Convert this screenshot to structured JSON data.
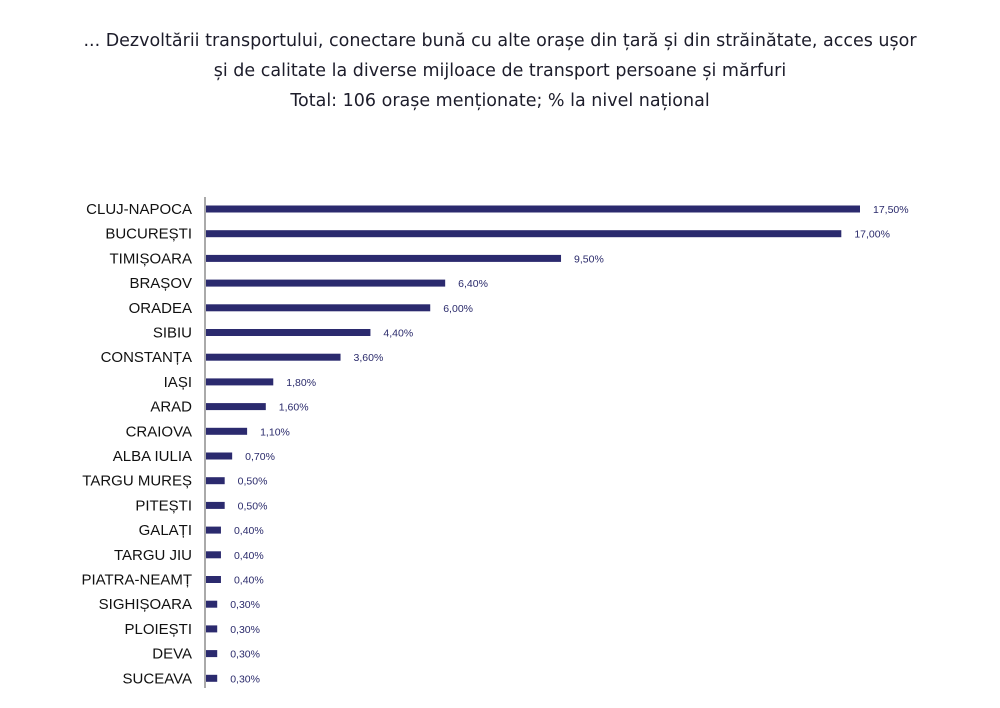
{
  "title_lines": [
    "... Dezvoltării transportului, conectare bună cu alte orașe din țară și din străinătate, acces ușor",
    "și de calitate la diverse mijloace de transport persoane și mărfuri",
    "Total: 106 orașe menționate; % la nivel național"
  ],
  "chart_data": {
    "type": "bar",
    "orientation": "horizontal",
    "categories": [
      "CLUJ-NAPOCA",
      "BUCUREȘTI",
      "TIMIȘOARA",
      "BRAȘOV",
      "ORADEA",
      "SIBIU",
      "CONSTANȚA",
      "IAȘI",
      "ARAD",
      "CRAIOVA",
      "ALBA IULIA",
      "TARGU MUREȘ",
      "PITEȘTI",
      "GALAȚI",
      "TARGU JIU",
      "PIATRA-NEAMȚ",
      "SIGHIȘOARA",
      "PLOIEȘTI",
      "DEVA",
      "SUCEAVA"
    ],
    "values": [
      17.5,
      17.0,
      9.5,
      6.4,
      6.0,
      4.4,
      3.6,
      1.8,
      1.6,
      1.1,
      0.7,
      0.5,
      0.5,
      0.4,
      0.4,
      0.4,
      0.3,
      0.3,
      0.3,
      0.3
    ],
    "value_labels": [
      "17,50%",
      "17,00%",
      "9,50%",
      "6,40%",
      "6,00%",
      "4,40%",
      "3,60%",
      "1,80%",
      "1,60%",
      "1,10%",
      "0,70%",
      "0,50%",
      "0,50%",
      "0,40%",
      "0,40%",
      "0,40%",
      "0,30%",
      "0,30%",
      "0,30%",
      "0,30%"
    ],
    "title": "",
    "xlabel": "",
    "ylabel": "",
    "grid": false,
    "legend": "none",
    "bar_color": "#2b2a6e"
  }
}
